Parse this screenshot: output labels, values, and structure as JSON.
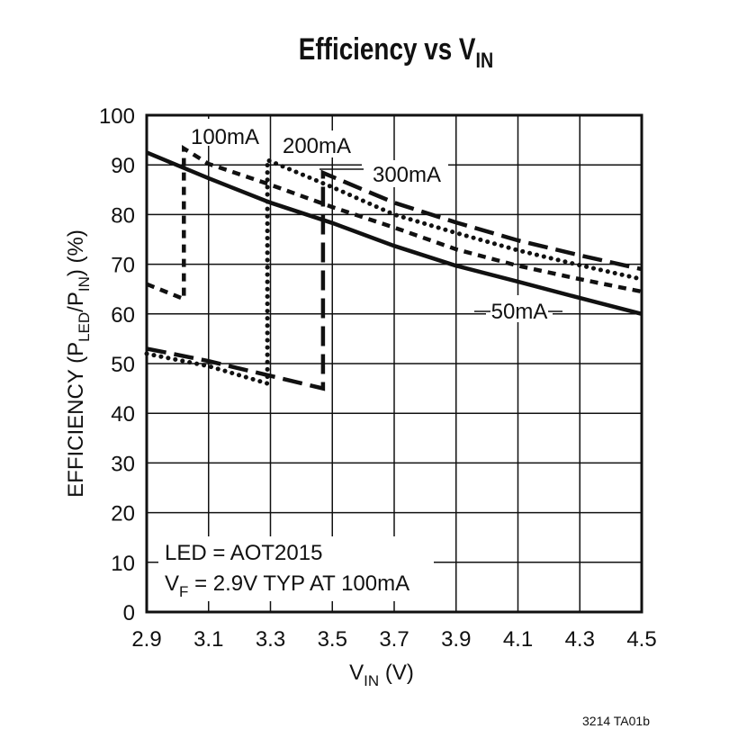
{
  "chart_data": {
    "type": "line",
    "title": "Efficiency vs V",
    "title_sub": "IN",
    "xlabel": "V",
    "xlabel_sub": "IN",
    "xlabel_unit": " (V)",
    "ylabel_parts": [
      "EFFICIENCY (P",
      "LED",
      "/P",
      "IN",
      ") (%)"
    ],
    "xlim": [
      2.9,
      4.5
    ],
    "ylim": [
      0,
      100
    ],
    "xticks": [
      "2.9",
      "3.1",
      "3.3",
      "3.5",
      "3.7",
      "3.9",
      "4.1",
      "4.3",
      "4.5"
    ],
    "yticks": [
      "0",
      "10",
      "20",
      "30",
      "40",
      "50",
      "60",
      "70",
      "80",
      "90",
      "100"
    ],
    "grid": true,
    "series": [
      {
        "name": "50mA",
        "style": "solid",
        "x": [
          2.9,
          3.1,
          3.3,
          3.5,
          3.7,
          3.9,
          4.1,
          4.3,
          4.5
        ],
        "y": [
          92.5,
          87.3,
          82.4,
          78.3,
          73.7,
          69.7,
          66.5,
          63.2,
          60
        ]
      },
      {
        "name": "100mA",
        "style": "short-dash",
        "x": [
          2.9,
          3.02,
          3.02,
          3.1,
          3.3,
          3.5,
          3.7,
          3.9,
          4.1,
          4.3,
          4.5
        ],
        "y": [
          66,
          63,
          93.3,
          90.2,
          86,
          81.5,
          77.4,
          73,
          69.7,
          67,
          64.5
        ]
      },
      {
        "name": "200mA",
        "style": "dotted",
        "x": [
          2.9,
          3.1,
          3.29,
          3.29,
          3.5,
          3.7,
          3.9,
          4.1,
          4.3,
          4.5
        ],
        "y": [
          52,
          49.5,
          46,
          91,
          85.5,
          80,
          76.3,
          72.8,
          69.8,
          67
        ]
      },
      {
        "name": "300mA",
        "style": "long-dash",
        "x": [
          2.9,
          3.1,
          3.47,
          3.47,
          3.7,
          3.9,
          4.1,
          4.3,
          4.5
        ],
        "y": [
          53,
          50.5,
          45,
          88.4,
          82.4,
          78.4,
          74.8,
          71.8,
          69
        ]
      }
    ],
    "annotations": {
      "line1": "LED = AOT2015",
      "line2_pre": "V",
      "line2_sub": "F",
      "line2_post": " = 2.9V TYP AT 100mA"
    }
  },
  "footer": "3214 TA01b"
}
